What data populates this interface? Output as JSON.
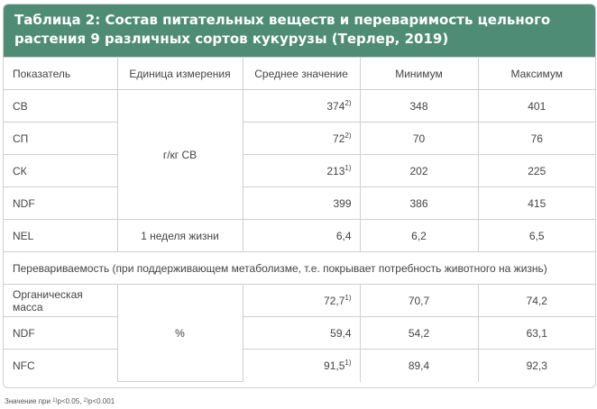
{
  "title": "Таблица 2: Состав питательных веществ и переваримость цельного растения 9 различных сортов кукурузы (Терлер, 2019)",
  "headers": [
    "Показатель",
    "Единица измерения",
    "Среднее значение",
    "Минимум",
    "Максимум"
  ],
  "group1": {
    "unit": "г/кг СВ",
    "rows": [
      {
        "name": "СВ",
        "mean": "374",
        "mark": "2)",
        "min": "348",
        "max": "401"
      },
      {
        "name": "СП",
        "mean": "72",
        "mark": "2)",
        "min": "70",
        "max": "76"
      },
      {
        "name": "СК",
        "mean": "213",
        "mark": "1)",
        "min": "202",
        "max": "225"
      },
      {
        "name": "NDF",
        "mean": "399",
        "mark": "",
        "min": "386",
        "max": "415"
      }
    ]
  },
  "nel_row": {
    "name": "NEL",
    "unit": "1 неделя жизни",
    "mean": "6,4",
    "min": "6,2",
    "max": "6,5"
  },
  "section_label": "Перевариваемость (при поддерживающем метаболизме, т.е. покрывает потребность животного на жизнь)",
  "group2": {
    "unit": "%",
    "rows": [
      {
        "name": "Органическая масса",
        "mean": "72,7",
        "mark": "1)",
        "min": "70,7",
        "max": "74,2"
      },
      {
        "name": "NDF",
        "mean": "59,4",
        "mark": "",
        "min": "54,2",
        "max": "63,1"
      },
      {
        "name": "NFC",
        "mean": "91,5",
        "mark": "1)",
        "min": "89,4",
        "max": "92,3"
      }
    ]
  },
  "footnote": {
    "prefix": "Значение при ",
    "mark1": "1)",
    "text1": "p<0.05, ",
    "mark2": "2)",
    "text2": "p<0.001"
  }
}
